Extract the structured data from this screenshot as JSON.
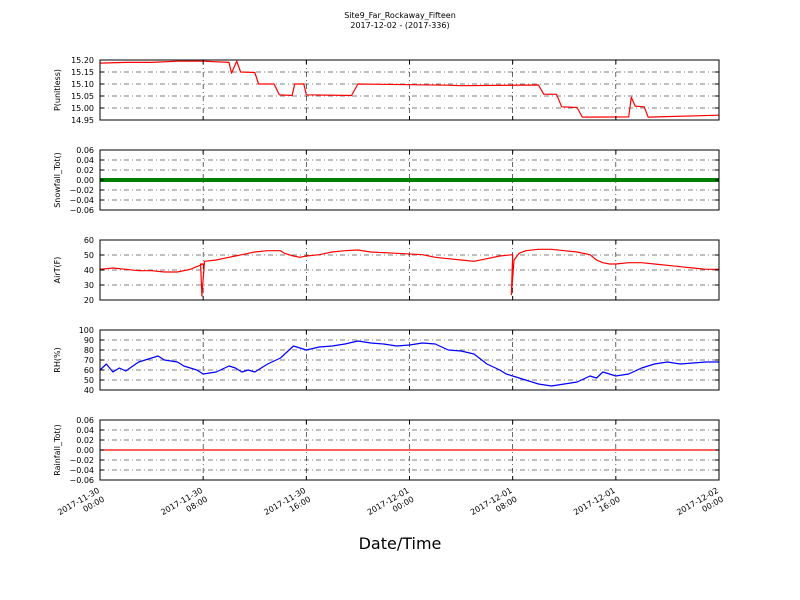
{
  "chart_data": {
    "title": "Site9_Far_Rockaway_Fifteen",
    "subtitle": "2017-12-02 - (2017-336)",
    "xlabel": "Date/Time",
    "x_tick_labels": [
      [
        "2017-11-30",
        "00:00"
      ],
      [
        "2017-11-30",
        "08:00"
      ],
      [
        "2017-11-30",
        "16:00"
      ],
      [
        "2017-12-01",
        "00:00"
      ],
      [
        "2017-12-01",
        "08:00"
      ],
      [
        "2017-12-01",
        "16:00"
      ],
      [
        "2017-12-02",
        "00:00"
      ]
    ],
    "x_range_hours": [
      0,
      48
    ],
    "grid": true,
    "grid_style": "dash-dot",
    "panels": [
      {
        "type": "line",
        "ylabel": "P(unitless)",
        "ylim": [
          14.95,
          15.2
        ],
        "yticks": [
          "15.20",
          "15.15",
          "15.10",
          "15.05",
          "15.00",
          "14.95"
        ],
        "color": "#ff0000",
        "points": [
          [
            0,
            15.187
          ],
          [
            2,
            15.19
          ],
          [
            4,
            15.19
          ],
          [
            6,
            15.195
          ],
          [
            8,
            15.195
          ],
          [
            10,
            15.19
          ],
          [
            10.2,
            15.145
          ],
          [
            10.6,
            15.195
          ],
          [
            10.9,
            15.15
          ],
          [
            12,
            15.148
          ],
          [
            12.3,
            15.1
          ],
          [
            13.5,
            15.1
          ],
          [
            13.9,
            15.055
          ],
          [
            14.9,
            15.052
          ],
          [
            15.1,
            15.1
          ],
          [
            15.8,
            15.1
          ],
          [
            16,
            15.055
          ],
          [
            19.5,
            15.052
          ],
          [
            20,
            15.1
          ],
          [
            27,
            15.095
          ],
          [
            28,
            15.093
          ],
          [
            34,
            15.096
          ],
          [
            34.4,
            15.058
          ],
          [
            35.4,
            15.057
          ],
          [
            35.8,
            15.005
          ],
          [
            37,
            15.002
          ],
          [
            37.4,
            14.962
          ],
          [
            41,
            14.963
          ],
          [
            41.2,
            15.045
          ],
          [
            41.5,
            15.008
          ],
          [
            42.2,
            15.005
          ],
          [
            42.5,
            14.962
          ],
          [
            48,
            14.97
          ]
        ]
      },
      {
        "type": "line",
        "ylabel": "Snowfall_Tot()",
        "ylim": [
          -0.06,
          0.06
        ],
        "yticks": [
          "0.06",
          "0.04",
          "0.02",
          "0.00",
          "−0.02",
          "−0.04",
          "−0.06"
        ],
        "color": "#008000",
        "points": [
          [
            0,
            0
          ],
          [
            48,
            0
          ]
        ]
      },
      {
        "type": "line",
        "ylabel": "AirT(F)",
        "ylim": [
          15,
          60
        ],
        "yticks": [
          "60",
          "50",
          "40",
          "30",
          "20"
        ],
        "color": "#ff0000",
        "points": [
          [
            0,
            38
          ],
          [
            1,
            39
          ],
          [
            2,
            38
          ],
          [
            3,
            37
          ],
          [
            4,
            37
          ],
          [
            5,
            36
          ],
          [
            6,
            36
          ],
          [
            7,
            38
          ],
          [
            7.5,
            40
          ],
          [
            8,
            42
          ],
          [
            7.8,
            42
          ],
          [
            7.9,
            18
          ],
          [
            8.1,
            44
          ],
          [
            9,
            45
          ],
          [
            10,
            47
          ],
          [
            10.5,
            48
          ],
          [
            11,
            49
          ],
          [
            11.5,
            50
          ],
          [
            12,
            51
          ],
          [
            13,
            52
          ],
          [
            14,
            52
          ],
          [
            14.3,
            50
          ],
          [
            15,
            48
          ],
          [
            15.5,
            47
          ],
          [
            16,
            48
          ],
          [
            17,
            49
          ],
          [
            17.5,
            50
          ],
          [
            18,
            51
          ],
          [
            19,
            52
          ],
          [
            20,
            52.5
          ],
          [
            21,
            51
          ],
          [
            23,
            50
          ],
          [
            25,
            49
          ],
          [
            26,
            47
          ],
          [
            27,
            46
          ],
          [
            28,
            45
          ],
          [
            29,
            44
          ],
          [
            30,
            46
          ],
          [
            31,
            48
          ],
          [
            32,
            49
          ],
          [
            31.9,
            19
          ],
          [
            32.1,
            45
          ],
          [
            32.5,
            50
          ],
          [
            33,
            52
          ],
          [
            34,
            53
          ],
          [
            35,
            53
          ],
          [
            36,
            52
          ],
          [
            37,
            51
          ],
          [
            38,
            49
          ],
          [
            38.5,
            45
          ],
          [
            39,
            43
          ],
          [
            39.5,
            42
          ],
          [
            40,
            42
          ],
          [
            41,
            43
          ],
          [
            42,
            43
          ],
          [
            43,
            42
          ],
          [
            44,
            41
          ],
          [
            45,
            40
          ],
          [
            46,
            39
          ],
          [
            47,
            38
          ],
          [
            48,
            38
          ]
        ]
      },
      {
        "type": "line",
        "ylabel": "RH(%)",
        "ylim": [
          40,
          100
        ],
        "yticks": [
          "100",
          "90",
          "80",
          "70",
          "60",
          "50",
          "40"
        ],
        "color": "#0000ff",
        "points": [
          [
            0,
            60
          ],
          [
            0.5,
            66
          ],
          [
            1,
            58
          ],
          [
            1.5,
            62
          ],
          [
            2,
            59
          ],
          [
            3,
            68
          ],
          [
            4,
            72
          ],
          [
            4.5,
            74
          ],
          [
            5,
            70
          ],
          [
            6,
            68
          ],
          [
            6.5,
            64
          ],
          [
            7,
            62
          ],
          [
            7.5,
            60
          ],
          [
            8,
            56
          ],
          [
            9,
            58
          ],
          [
            10,
            64
          ],
          [
            10.5,
            62
          ],
          [
            11,
            58
          ],
          [
            11.5,
            60
          ],
          [
            12,
            58
          ],
          [
            13,
            66
          ],
          [
            14,
            72
          ],
          [
            14.5,
            78
          ],
          [
            15,
            84
          ],
          [
            15.5,
            82
          ],
          [
            16,
            80
          ],
          [
            17,
            83
          ],
          [
            18,
            84
          ],
          [
            19,
            86
          ],
          [
            20,
            89
          ],
          [
            21,
            87
          ],
          [
            22,
            86
          ],
          [
            23,
            84
          ],
          [
            24,
            85
          ],
          [
            25,
            87
          ],
          [
            26,
            86
          ],
          [
            27,
            80
          ],
          [
            28,
            79
          ],
          [
            29,
            76
          ],
          [
            30,
            66
          ],
          [
            31,
            60
          ],
          [
            31.5,
            56
          ],
          [
            32,
            54
          ],
          [
            33,
            50
          ],
          [
            34,
            46
          ],
          [
            35,
            44
          ],
          [
            36,
            46
          ],
          [
            37,
            48
          ],
          [
            38,
            54
          ],
          [
            38.5,
            52
          ],
          [
            39,
            58
          ],
          [
            40,
            54
          ],
          [
            41,
            56
          ],
          [
            42,
            62
          ],
          [
            43,
            66
          ],
          [
            44,
            68
          ],
          [
            45,
            66
          ],
          [
            46,
            67
          ],
          [
            47,
            68
          ],
          [
            48,
            68
          ]
        ]
      },
      {
        "type": "line",
        "ylabel": "Rainfall_Tot()",
        "ylim": [
          -0.06,
          0.06
        ],
        "yticks": [
          "0.06",
          "0.04",
          "0.02",
          "0.00",
          "−0.02",
          "−0.04",
          "−0.06"
        ],
        "color": "#ff0000",
        "points": [
          [
            0,
            0
          ],
          [
            48,
            0
          ]
        ]
      }
    ]
  }
}
